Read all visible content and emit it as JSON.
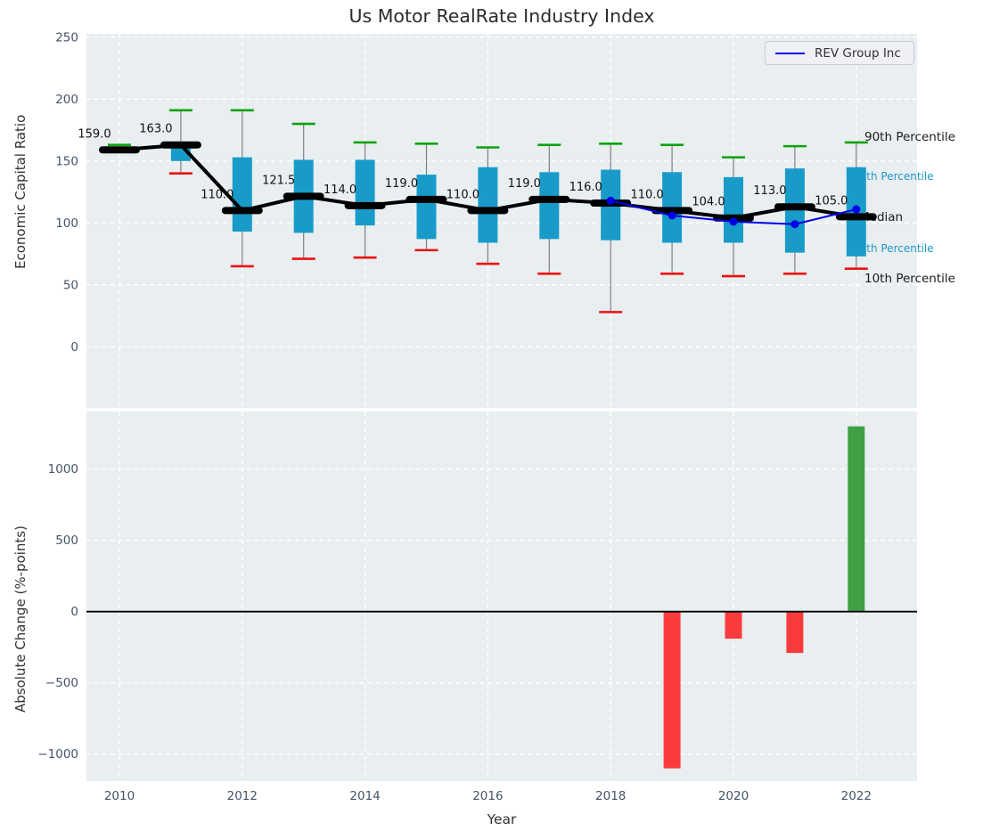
{
  "colors": {
    "axes_bg": "#e9eef1",
    "grid": "#ffffff",
    "tick_label": "#44546a",
    "box": "#189bc9",
    "p90_cap": "#0da30d",
    "p10_cap": "#ee1111",
    "median": "#000000",
    "rev_line": "#0000e6",
    "bar_up": "#3fa045",
    "bar_down": "#fa3b3b",
    "annotation_black": "#1a1a1a",
    "annotation_blue": "#2097cb",
    "whisker": "#808080"
  },
  "chart_data": [
    {
      "type": "boxplot+line",
      "title": "Us Motor RealRate Industry Index",
      "ylabel": "Economic Capital Ratio",
      "ylim": [
        -49,
        253
      ],
      "yticks": [
        0,
        50,
        100,
        150,
        200,
        250
      ],
      "ytick_labels": [
        "0",
        "50",
        "100",
        "150",
        "200",
        "250"
      ],
      "grid": "on",
      "years": [
        2010,
        2011,
        2012,
        2013,
        2014,
        2015,
        2016,
        2017,
        2018,
        2019,
        2020,
        2021,
        2022
      ],
      "median": [
        159,
        163,
        110,
        121.5,
        114,
        119,
        110,
        119,
        116,
        110,
        104,
        113,
        105
      ],
      "median_labels": [
        "159.0",
        "163.0",
        "110.0",
        "121.5",
        "114.0",
        "119.0",
        "110.0",
        "119.0",
        "116.0",
        "110.0",
        "104.0",
        "113.0",
        "105.0"
      ],
      "q75": [
        160,
        164,
        153,
        151,
        151,
        139,
        145,
        141,
        143,
        141,
        137,
        144,
        145
      ],
      "q25": [
        158,
        150,
        93,
        92,
        98,
        87,
        84,
        87,
        86,
        84,
        84,
        76,
        73
      ],
      "p90": [
        163,
        191,
        191,
        180,
        165,
        164,
        161,
        163,
        164,
        163,
        153,
        162,
        165
      ],
      "p10": [
        null,
        140,
        65,
        71,
        72,
        78,
        67,
        59,
        28,
        59,
        57,
        59,
        63
      ],
      "series": [
        {
          "name": "REV Group Inc",
          "x": [
            2018,
            2019,
            2020,
            2021,
            2022
          ],
          "values": [
            118,
            106,
            101,
            99,
            111
          ],
          "color": "#0000e6"
        }
      ],
      "legend": {
        "label": "REV Group Inc",
        "position": "upper right"
      },
      "annotations": [
        {
          "text": "90th Percentile",
          "color": "#1a1a1a",
          "x": 970,
          "y": 158,
          "size": 13.5
        },
        {
          "text": "75th Percentile",
          "color": "#2097cb",
          "x": 957,
          "y": 202,
          "size": 12
        },
        {
          "text": "Median",
          "color": "#1a1a1a",
          "x": 964,
          "y": 248,
          "size": 13.5
        },
        {
          "text": "25th Percentile",
          "color": "#2097cb",
          "x": 957,
          "y": 283,
          "size": 12
        },
        {
          "text": "10th Percentile",
          "color": "#1a1a1a",
          "x": 970,
          "y": 317,
          "size": 13.5
        }
      ]
    },
    {
      "type": "bar",
      "ylabel": "Absolute Change (%-points)",
      "xlabel": "Year",
      "ylim": [
        -1190,
        1404
      ],
      "yticks": [
        -1000,
        -500,
        0,
        500,
        1000
      ],
      "ytick_labels": [
        "−1000",
        "−500",
        "0",
        "500",
        "1000"
      ],
      "xticks": [
        2010,
        2012,
        2014,
        2016,
        2018,
        2020,
        2022
      ],
      "xtick_labels": [
        "2010",
        "2012",
        "2014",
        "2016",
        "2018",
        "2020",
        "2022"
      ],
      "grid": "on",
      "zero_line": true,
      "x": [
        2019,
        2020,
        2021,
        2022
      ],
      "values": [
        -1100,
        -190,
        -290,
        1300
      ],
      "bar_colors": [
        "#fa3b3b",
        "#fa3b3b",
        "#fa3b3b",
        "#3fa045"
      ]
    }
  ]
}
